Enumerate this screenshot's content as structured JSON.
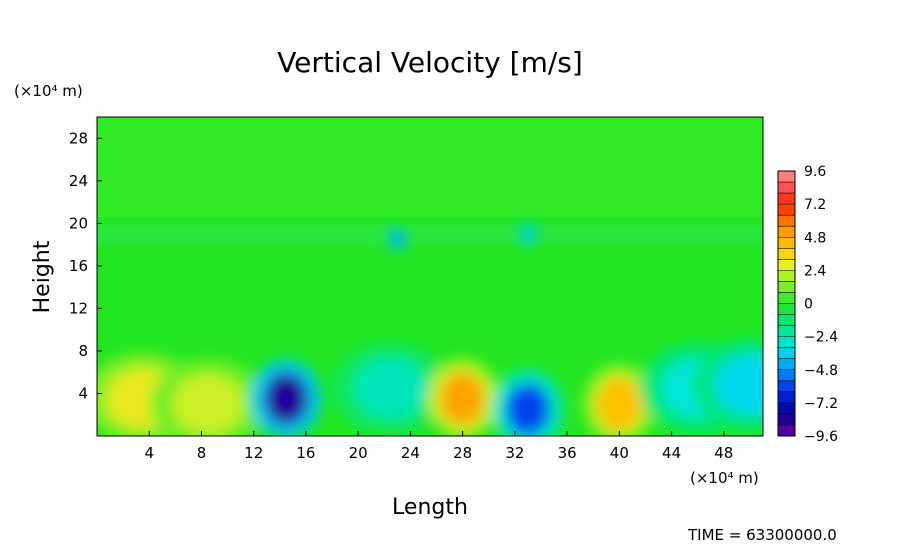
{
  "chart_data": {
    "type": "heatmap",
    "title": "Vertical Velocity [m/s]",
    "xlabel": "Length",
    "ylabel": "Height",
    "x_unit": "(×10⁴ m)",
    "y_unit": "(×10⁴ m)",
    "x_ticks": [
      "4",
      "8",
      "12",
      "16",
      "20",
      "24",
      "28",
      "32",
      "36",
      "40",
      "44",
      "48"
    ],
    "y_ticks": [
      "4",
      "8",
      "12",
      "16",
      "20",
      "24",
      "28"
    ],
    "xlim": [
      0,
      51
    ],
    "ylim": [
      0,
      30
    ],
    "colorbar": {
      "range": [
        -9.6,
        9.6
      ],
      "labels": [
        "9.6",
        "7.2",
        "4.8",
        "2.4",
        "0",
        "−2.4",
        "−4.8",
        "−7.2",
        "−9.6"
      ],
      "values": [
        9.6,
        7.2,
        4.8,
        2.4,
        0,
        -2.4,
        -4.8,
        -7.2,
        -9.6
      ]
    },
    "features": [
      {
        "x": 3.5,
        "y": 3.5,
        "value": 3.0
      },
      {
        "x": 8.5,
        "y": 3.0,
        "value": 2.4
      },
      {
        "x": 14.5,
        "y": 3.5,
        "value": -8.5
      },
      {
        "x": 22.5,
        "y": 4.5,
        "value": -2.5
      },
      {
        "x": 28.0,
        "y": 3.5,
        "value": 5.0
      },
      {
        "x": 33.0,
        "y": 2.5,
        "value": -6.0
      },
      {
        "x": 40.0,
        "y": 3.0,
        "value": 4.2
      },
      {
        "x": 46.0,
        "y": 4.5,
        "value": -3.0
      },
      {
        "x": 50.0,
        "y": 4.8,
        "value": -3.5
      },
      {
        "x": 23.0,
        "y": 18.5,
        "value": -5.0
      },
      {
        "x": 33.0,
        "y": 19.0,
        "value": -4.0
      }
    ],
    "grid": false,
    "legend": "colorbar-right"
  },
  "footer": {
    "time": "TIME =  63300000.0"
  }
}
